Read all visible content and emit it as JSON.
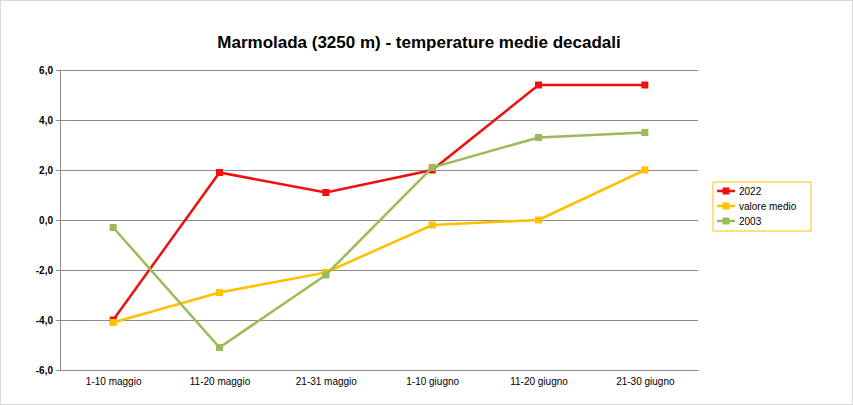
{
  "chart_data": {
    "type": "line",
    "title": "Marmolada (3250 m) - temperature medie decadali",
    "categories": [
      "1-10 maggio",
      "11-20 maggio",
      "21-31 maggio",
      "1-10 giugno",
      "11-20 giugno",
      "21-30 giugno"
    ],
    "series": [
      {
        "name": "2022",
        "color": "#ee1111",
        "values": [
          -4.0,
          1.9,
          1.1,
          2.0,
          5.4,
          5.4
        ]
      },
      {
        "name": "valore medio",
        "color": "#ffc000",
        "values": [
          -4.1,
          -2.9,
          -2.1,
          -0.2,
          0.0,
          2.0
        ]
      },
      {
        "name": "2003",
        "color": "#9bbb59",
        "values": [
          -0.3,
          -5.1,
          -2.2,
          2.1,
          3.3,
          3.5
        ]
      }
    ],
    "ylim": [
      -6,
      6
    ],
    "yticks": [
      {
        "value": -6,
        "label": "-6,0"
      },
      {
        "value": -4,
        "label": "-4,0"
      },
      {
        "value": -2,
        "label": "-2,0"
      },
      {
        "value": 0,
        "label": "0,0"
      },
      {
        "value": 2,
        "label": "2,0"
      },
      {
        "value": 4,
        "label": "4,0"
      },
      {
        "value": 6,
        "label": "6,0"
      }
    ],
    "grid": true,
    "legend": "right",
    "marker": "square",
    "line_style": "solid"
  }
}
